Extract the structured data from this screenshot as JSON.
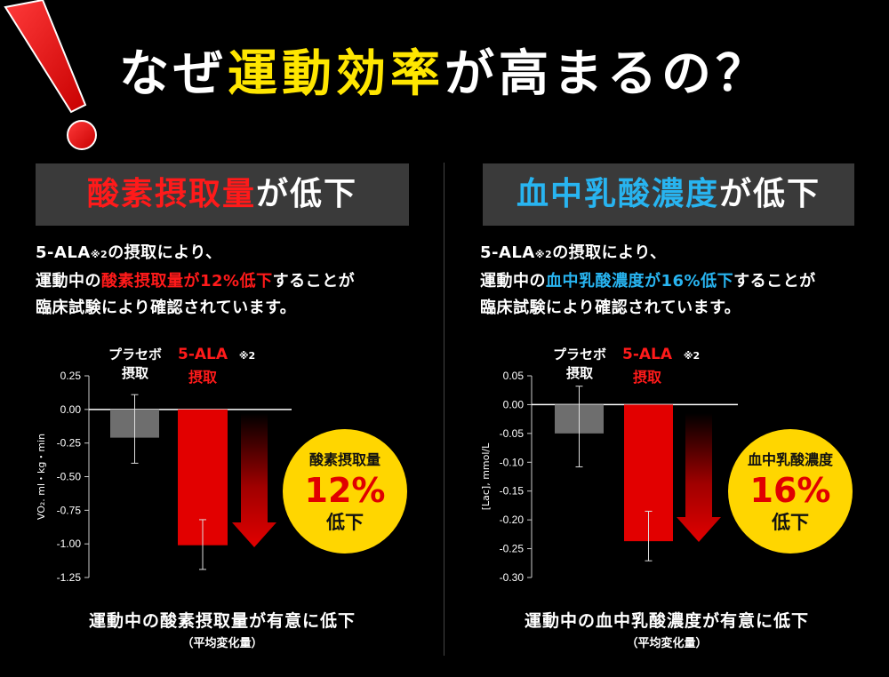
{
  "title": {
    "prefix": "なぜ",
    "highlight": "運動効率",
    "suffix": "が高まるの？"
  },
  "left": {
    "header_highlight": "酸素摂取量",
    "header_suffix": "が低下",
    "desc": {
      "line1_a": "5-ALA",
      "line1_note": "※2",
      "line1_b": "の摂取により、",
      "line2_a": "運動中の",
      "line2_red": "酸素摂取量が12%低下",
      "line2_b": "することが",
      "line3": "臨床試験により確認されています。"
    },
    "badge": {
      "line1": "酸素摂取量",
      "pct": "12%",
      "line3": "低下"
    },
    "footer_main": "運動中の酸素摂取量が有意に低下",
    "footer_sub": "（平均変化量）"
  },
  "right": {
    "header_highlight": "血中乳酸濃度",
    "header_suffix": "が低下",
    "desc": {
      "line1_a": "5-ALA",
      "line1_note": "※2",
      "line1_b": "の摂取により、",
      "line2_a": "運動中の",
      "line2_blue": "血中乳酸濃度が16%低下",
      "line2_b": "することが",
      "line3": "臨床試験により確認されています。"
    },
    "badge": {
      "line1": "血中乳酸濃度",
      "pct": "16%",
      "line3": "低下"
    },
    "footer_main": "運動中の血中乳酸濃度が有意に低下",
    "footer_sub": "（平均変化量）"
  },
  "colors": {
    "placebo": "#6e6e6e",
    "ala": "#e20000",
    "badge": "#ffd600",
    "highlight_yellow": "#ffe600",
    "highlight_red": "#ff1a1a",
    "highlight_blue": "#28b4f0"
  },
  "chart_data": [
    {
      "type": "bar",
      "ylabel": "VO₂.  ml・kg・min",
      "ylim": [
        -1.25,
        0.25
      ],
      "yticks": [
        0.25,
        0.0,
        -0.25,
        -0.5,
        -0.75,
        -1.0,
        -1.25
      ],
      "ytick_labels": [
        "0.25",
        "0.00",
        "-0.25",
        "-0.50",
        "-0.75",
        "-1.00",
        "-1.25"
      ],
      "categories": [
        {
          "line1": "プラセボ",
          "line2": "摂取"
        },
        {
          "line1": "5-ALA",
          "note": "※2",
          "line2": "摂取"
        }
      ],
      "values": [
        -0.21,
        -1.01
      ],
      "error": [
        [
          -0.4,
          0.11
        ],
        [
          -1.19,
          -0.82
        ]
      ]
    },
    {
      "type": "bar",
      "ylabel": "[Lac], mmol/L",
      "ylim": [
        -0.3,
        0.05
      ],
      "yticks": [
        0.05,
        0.0,
        -0.05,
        -0.1,
        -0.15,
        -0.2,
        -0.25,
        -0.3
      ],
      "ytick_labels": [
        "0.05",
        "0.00",
        "-0.05",
        "-0.10",
        "-0.15",
        "-0.20",
        "-0.25",
        "-0.30"
      ],
      "categories": [
        {
          "line1": "プラセボ",
          "line2": "摂取"
        },
        {
          "line1": "5-ALA",
          "note": "※2",
          "line2": "摂取"
        }
      ],
      "values": [
        -0.05,
        -0.237
      ],
      "error": [
        [
          -0.108,
          0.032
        ],
        [
          -0.271,
          -0.185
        ]
      ]
    }
  ]
}
